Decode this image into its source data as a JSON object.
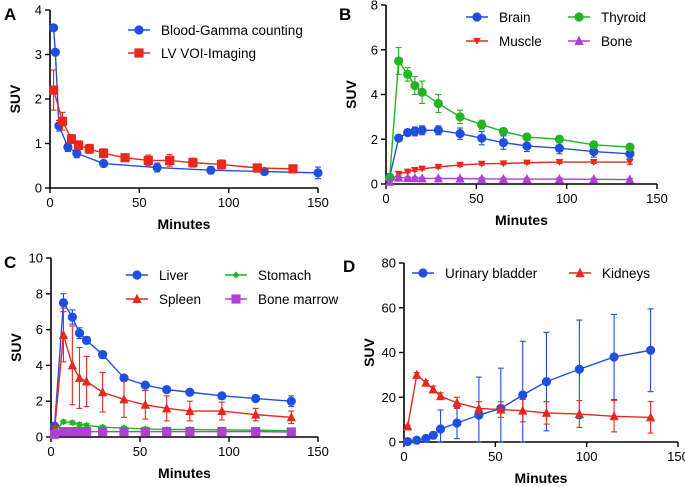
{
  "chart_data": [
    {
      "panel": "A",
      "type": "line",
      "xlabel": "Minutes",
      "ylabel": "SUV",
      "xlim": [
        0,
        150
      ],
      "ylim": [
        0,
        4
      ],
      "xticks": [
        0,
        50,
        100,
        150
      ],
      "yticks": [
        0,
        1,
        2,
        3,
        4
      ],
      "legend_position": "top-right",
      "series": [
        {
          "name": "Blood-Gamma counting",
          "color": "#1f4fe0",
          "marker": "circle",
          "points": [
            {
              "x": 2,
              "y": 3.6,
              "err": 0
            },
            {
              "x": 3,
              "y": 3.05,
              "err": 0
            },
            {
              "x": 5,
              "y": 1.4,
              "err": 0.12
            },
            {
              "x": 10,
              "y": 0.92,
              "err": 0.1
            },
            {
              "x": 15,
              "y": 0.78,
              "err": 0.1
            },
            {
              "x": 30,
              "y": 0.55,
              "err": 0.06
            },
            {
              "x": 60,
              "y": 0.46,
              "err": 0.1
            },
            {
              "x": 90,
              "y": 0.4,
              "err": 0.08
            },
            {
              "x": 120,
              "y": 0.37,
              "err": 0.07
            },
            {
              "x": 150,
              "y": 0.34,
              "err": 0.13
            }
          ]
        },
        {
          "name": "LV VOI-Imaging",
          "color": "#e8281c",
          "marker": "square",
          "points": [
            {
              "x": 2,
              "y": 2.2,
              "err": 0.45
            },
            {
              "x": 7,
              "y": 1.5,
              "err": 0.2
            },
            {
              "x": 12,
              "y": 1.1,
              "err": 0.1
            },
            {
              "x": 16,
              "y": 0.96,
              "err": 0.1
            },
            {
              "x": 22,
              "y": 0.88,
              "err": 0.1
            },
            {
              "x": 30,
              "y": 0.78,
              "err": 0.1
            },
            {
              "x": 42,
              "y": 0.68,
              "err": 0.08
            },
            {
              "x": 55,
              "y": 0.62,
              "err": 0.12
            },
            {
              "x": 67,
              "y": 0.62,
              "err": 0.13
            },
            {
              "x": 80,
              "y": 0.57,
              "err": 0.1
            },
            {
              "x": 96,
              "y": 0.53,
              "err": 0.1
            },
            {
              "x": 116,
              "y": 0.45,
              "err": 0.06
            },
            {
              "x": 136,
              "y": 0.43,
              "err": 0.06
            }
          ]
        }
      ]
    },
    {
      "panel": "B",
      "type": "line",
      "xlabel": "Minutes",
      "ylabel": "SUV",
      "xlim": [
        0,
        150
      ],
      "ylim": [
        0,
        8
      ],
      "xticks": [
        0,
        50,
        100,
        150
      ],
      "yticks": [
        0,
        2,
        4,
        6,
        8
      ],
      "legend_position": "top",
      "series": [
        {
          "name": "Brain",
          "color": "#1f4fe0",
          "marker": "circle",
          "points": [
            {
              "x": 2,
              "y": 0.3,
              "err": 0.1
            },
            {
              "x": 7,
              "y": 2.05,
              "err": 0.1
            },
            {
              "x": 12,
              "y": 2.3,
              "err": 0.15
            },
            {
              "x": 16,
              "y": 2.35,
              "err": 0.2
            },
            {
              "x": 20,
              "y": 2.4,
              "err": 0.2
            },
            {
              "x": 29,
              "y": 2.4,
              "err": 0.2
            },
            {
              "x": 41,
              "y": 2.25,
              "err": 0.25
            },
            {
              "x": 53,
              "y": 2.05,
              "err": 0.3
            },
            {
              "x": 65,
              "y": 1.85,
              "err": 0.3
            },
            {
              "x": 78,
              "y": 1.7,
              "err": 0.25
            },
            {
              "x": 96,
              "y": 1.6,
              "err": 0.25
            },
            {
              "x": 115,
              "y": 1.45,
              "err": 0.25
            },
            {
              "x": 135,
              "y": 1.35,
              "err": 0.2
            }
          ]
        },
        {
          "name": "Muscle",
          "color": "#e8281c",
          "marker": "triangle-down",
          "points": [
            {
              "x": 2,
              "y": 0.1,
              "err": 0.05
            },
            {
              "x": 7,
              "y": 0.45,
              "err": 0.05
            },
            {
              "x": 12,
              "y": 0.55,
              "err": 0.05
            },
            {
              "x": 16,
              "y": 0.62,
              "err": 0.05
            },
            {
              "x": 20,
              "y": 0.68,
              "err": 0.05
            },
            {
              "x": 29,
              "y": 0.76,
              "err": 0.06
            },
            {
              "x": 41,
              "y": 0.85,
              "err": 0.06
            },
            {
              "x": 53,
              "y": 0.9,
              "err": 0.06
            },
            {
              "x": 65,
              "y": 0.92,
              "err": 0.06
            },
            {
              "x": 78,
              "y": 0.95,
              "err": 0.06
            },
            {
              "x": 96,
              "y": 0.98,
              "err": 0.06
            },
            {
              "x": 115,
              "y": 0.98,
              "err": 0.06
            },
            {
              "x": 135,
              "y": 0.98,
              "err": 0.1
            }
          ]
        },
        {
          "name": "Thyroid",
          "color": "#22b422",
          "marker": "circle",
          "points": [
            {
              "x": 2,
              "y": 0.25,
              "err": 0.1
            },
            {
              "x": 7,
              "y": 5.5,
              "err": 0.6
            },
            {
              "x": 12,
              "y": 4.9,
              "err": 0.3
            },
            {
              "x": 16,
              "y": 4.4,
              "err": 0.4
            },
            {
              "x": 20,
              "y": 4.1,
              "err": 0.5
            },
            {
              "x": 29,
              "y": 3.6,
              "err": 0.4
            },
            {
              "x": 41,
              "y": 3.0,
              "err": 0.3
            },
            {
              "x": 53,
              "y": 2.65,
              "err": 0.2
            },
            {
              "x": 65,
              "y": 2.35,
              "err": 0.15
            },
            {
              "x": 78,
              "y": 2.1,
              "err": 0.12
            },
            {
              "x": 96,
              "y": 2.0,
              "err": 0.15
            },
            {
              "x": 115,
              "y": 1.75,
              "err": 0.15
            },
            {
              "x": 135,
              "y": 1.65,
              "err": 0.12
            }
          ]
        },
        {
          "name": "Bone",
          "color": "#b03fd6",
          "marker": "triangle-up",
          "points": [
            {
              "x": 2,
              "y": 0.1,
              "err": 0.05
            },
            {
              "x": 7,
              "y": 0.28,
              "err": 0.05
            },
            {
              "x": 12,
              "y": 0.27,
              "err": 0.05
            },
            {
              "x": 16,
              "y": 0.26,
              "err": 0.05
            },
            {
              "x": 20,
              "y": 0.25,
              "err": 0.05
            },
            {
              "x": 29,
              "y": 0.25,
              "err": 0.05
            },
            {
              "x": 41,
              "y": 0.24,
              "err": 0.05
            },
            {
              "x": 53,
              "y": 0.23,
              "err": 0.05
            },
            {
              "x": 65,
              "y": 0.22,
              "err": 0.05
            },
            {
              "x": 78,
              "y": 0.22,
              "err": 0.05
            },
            {
              "x": 96,
              "y": 0.22,
              "err": 0.05
            },
            {
              "x": 115,
              "y": 0.21,
              "err": 0.05
            },
            {
              "x": 135,
              "y": 0.2,
              "err": 0.05
            }
          ]
        }
      ]
    },
    {
      "panel": "C",
      "type": "line",
      "xlabel": "Minutes",
      "ylabel": "SUV",
      "xlim": [
        0,
        150
      ],
      "ylim": [
        0,
        10
      ],
      "xticks": [
        0,
        50,
        100,
        150
      ],
      "yticks": [
        0,
        2,
        4,
        6,
        8,
        10
      ],
      "legend_position": "top",
      "series": [
        {
          "name": "Liver",
          "color": "#1f4fe0",
          "marker": "circle",
          "points": [
            {
              "x": 2,
              "y": 0.6,
              "err": 0.2
            },
            {
              "x": 7,
              "y": 7.5,
              "err": 0.5
            },
            {
              "x": 12,
              "y": 6.7,
              "err": 0.4
            },
            {
              "x": 16,
              "y": 5.8,
              "err": 0.3
            },
            {
              "x": 20,
              "y": 5.4,
              "err": 0.2
            },
            {
              "x": 29,
              "y": 4.6,
              "err": 0.2
            },
            {
              "x": 41,
              "y": 3.3,
              "err": 0.15
            },
            {
              "x": 53,
              "y": 2.9,
              "err": 0.1
            },
            {
              "x": 65,
              "y": 2.65,
              "err": 0.1
            },
            {
              "x": 78,
              "y": 2.5,
              "err": 0.1
            },
            {
              "x": 96,
              "y": 2.3,
              "err": 0.1
            },
            {
              "x": 115,
              "y": 2.15,
              "err": 0.1
            },
            {
              "x": 135,
              "y": 2.0,
              "err": 0.3
            }
          ]
        },
        {
          "name": "Spleen",
          "color": "#e8281c",
          "marker": "triangle-up",
          "points": [
            {
              "x": 2,
              "y": 0.4,
              "err": 0.2
            },
            {
              "x": 7,
              "y": 5.7,
              "err": 1.5
            },
            {
              "x": 12,
              "y": 4.0,
              "err": 2.2
            },
            {
              "x": 16,
              "y": 3.3,
              "err": 1.7
            },
            {
              "x": 20,
              "y": 3.1,
              "err": 1.4
            },
            {
              "x": 29,
              "y": 2.5,
              "err": 1.1
            },
            {
              "x": 41,
              "y": 2.1,
              "err": 1.0
            },
            {
              "x": 53,
              "y": 1.8,
              "err": 0.8
            },
            {
              "x": 65,
              "y": 1.6,
              "err": 0.7
            },
            {
              "x": 78,
              "y": 1.45,
              "err": 0.55
            },
            {
              "x": 96,
              "y": 1.45,
              "err": 0.5
            },
            {
              "x": 115,
              "y": 1.25,
              "err": 0.35
            },
            {
              "x": 135,
              "y": 1.1,
              "err": 0.35
            }
          ]
        },
        {
          "name": "Stomach",
          "color": "#22b422",
          "marker": "diamond",
          "points": [
            {
              "x": 2,
              "y": 0.3,
              "err": 0.05
            },
            {
              "x": 7,
              "y": 0.85,
              "err": 0.1
            },
            {
              "x": 12,
              "y": 0.8,
              "err": 0.1
            },
            {
              "x": 16,
              "y": 0.7,
              "err": 0.1
            },
            {
              "x": 20,
              "y": 0.65,
              "err": 0.1
            },
            {
              "x": 29,
              "y": 0.55,
              "err": 0.1
            },
            {
              "x": 41,
              "y": 0.5,
              "err": 0.1
            },
            {
              "x": 53,
              "y": 0.45,
              "err": 0.1
            },
            {
              "x": 65,
              "y": 0.42,
              "err": 0.1
            },
            {
              "x": 78,
              "y": 0.42,
              "err": 0.1
            },
            {
              "x": 96,
              "y": 0.4,
              "err": 0.1
            },
            {
              "x": 115,
              "y": 0.38,
              "err": 0.1
            },
            {
              "x": 135,
              "y": 0.35,
              "err": 0.1
            }
          ]
        },
        {
          "name": "Bone marrow",
          "color": "#b03fd6",
          "marker": "square",
          "points": [
            {
              "x": 2,
              "y": 0.15,
              "err": 0.05
            },
            {
              "x": 7,
              "y": 0.3,
              "err": 0.05
            },
            {
              "x": 12,
              "y": 0.3,
              "err": 0.05
            },
            {
              "x": 16,
              "y": 0.3,
              "err": 0.05
            },
            {
              "x": 20,
              "y": 0.3,
              "err": 0.05
            },
            {
              "x": 29,
              "y": 0.3,
              "err": 0.05
            },
            {
              "x": 41,
              "y": 0.3,
              "err": 0.05
            },
            {
              "x": 53,
              "y": 0.3,
              "err": 0.05
            },
            {
              "x": 65,
              "y": 0.3,
              "err": 0.05
            },
            {
              "x": 78,
              "y": 0.3,
              "err": 0.05
            },
            {
              "x": 96,
              "y": 0.3,
              "err": 0.05
            },
            {
              "x": 115,
              "y": 0.3,
              "err": 0.05
            },
            {
              "x": 135,
              "y": 0.28,
              "err": 0.05
            }
          ]
        }
      ]
    },
    {
      "panel": "D",
      "type": "line",
      "xlabel": "Minutes",
      "ylabel": "SUV",
      "xlim": [
        0,
        150
      ],
      "ylim": [
        0,
        80
      ],
      "xticks": [
        0,
        50,
        100,
        150
      ],
      "yticks": [
        0,
        20,
        40,
        60,
        80
      ],
      "legend_position": "top",
      "series": [
        {
          "name": "Urinary bladder",
          "color": "#1f4fe0",
          "marker": "circle",
          "points": [
            {
              "x": 2,
              "y": 0.2,
              "err": 0.2
            },
            {
              "x": 7,
              "y": 0.8,
              "err": 0.5
            },
            {
              "x": 12,
              "y": 1.6,
              "err": 1.0
            },
            {
              "x": 16,
              "y": 3.0,
              "err": 1.5
            },
            {
              "x": 20,
              "y": 5.8,
              "err": 8.5
            },
            {
              "x": 29,
              "y": 8.5,
              "err": 7.0
            },
            {
              "x": 41,
              "y": 12.0,
              "err": 17.0
            },
            {
              "x": 53,
              "y": 15.0,
              "err": 18.0
            },
            {
              "x": 65,
              "y": 21.0,
              "err": 24.0
            },
            {
              "x": 78,
              "y": 27.0,
              "err": 22.0
            },
            {
              "x": 96,
              "y": 32.5,
              "err": 22.0
            },
            {
              "x": 115,
              "y": 38.0,
              "err": 19.0
            },
            {
              "x": 135,
              "y": 41.0,
              "err": 18.5
            }
          ]
        },
        {
          "name": "Kidneys",
          "color": "#e8281c",
          "marker": "triangle-up",
          "points": [
            {
              "x": 2,
              "y": 7.0,
              "err": 0.5
            },
            {
              "x": 7,
              "y": 30.0,
              "err": 1.0
            },
            {
              "x": 12,
              "y": 26.5,
              "err": 1.0
            },
            {
              "x": 16,
              "y": 23.5,
              "err": 1.5
            },
            {
              "x": 20,
              "y": 20.5,
              "err": 1.5
            },
            {
              "x": 29,
              "y": 17.5,
              "err": 2.5
            },
            {
              "x": 41,
              "y": 15.0,
              "err": 3.0
            },
            {
              "x": 53,
              "y": 14.5,
              "err": 3.5
            },
            {
              "x": 65,
              "y": 14.0,
              "err": 5.0
            },
            {
              "x": 78,
              "y": 13.0,
              "err": 5.0
            },
            {
              "x": 96,
              "y": 12.5,
              "err": 6.0
            },
            {
              "x": 115,
              "y": 11.5,
              "err": 7.0
            },
            {
              "x": 135,
              "y": 11.0,
              "err": 7.0
            }
          ]
        }
      ]
    }
  ]
}
